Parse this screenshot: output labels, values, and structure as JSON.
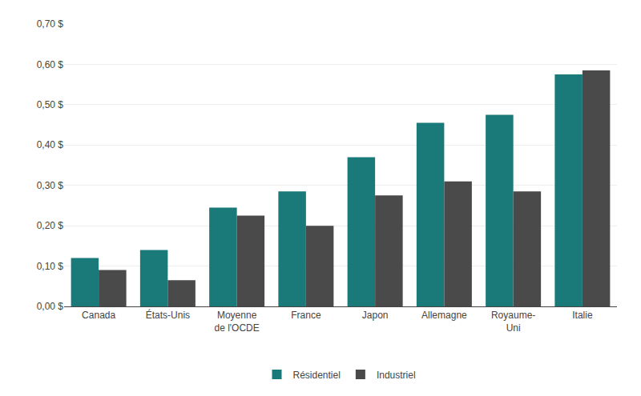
{
  "chart_data": {
    "type": "bar",
    "categories": [
      "Canada",
      "États-Unis",
      "Moyenne\nde l'OCDE",
      "France",
      "Japon",
      "Allemagne",
      "Royaume-\nUni",
      "Italie"
    ],
    "series": [
      {
        "name": "Résidentiel",
        "color": "#1a7a7a",
        "values": [
          0.12,
          0.14,
          0.245,
          0.285,
          0.37,
          0.455,
          0.475,
          0.575
        ]
      },
      {
        "name": "Industriel",
        "color": "#4a4a4a",
        "values": [
          0.09,
          0.065,
          0.225,
          0.2,
          0.275,
          0.31,
          0.285,
          0.585
        ]
      }
    ],
    "ylim": [
      0,
      0.7
    ],
    "yticks": [
      {
        "value": 0,
        "label": "0,00 $"
      },
      {
        "value": 0.1,
        "label": "0,10 $"
      },
      {
        "value": 0.2,
        "label": "0,20 $"
      },
      {
        "value": 0.3,
        "label": "0,30 $"
      },
      {
        "value": 0.4,
        "label": "0,40 $"
      },
      {
        "value": 0.5,
        "label": "0,50 $"
      },
      {
        "value": 0.6,
        "label": "0,60 $"
      },
      {
        "value": 0.7,
        "label": "0,70 $"
      }
    ],
    "grid": true,
    "legend": "bottom"
  }
}
